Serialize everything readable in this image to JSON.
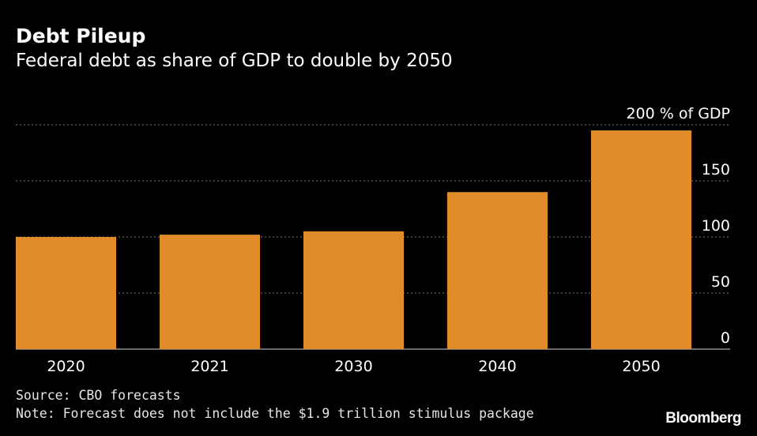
{
  "header": {
    "title": "Debt Pileup",
    "subtitle": "Federal debt as share of GDP to double by 2050"
  },
  "footer": {
    "source": "Source: CBO forecasts",
    "note": "Note: Forecast does not include the $1.9 trillion stimulus package",
    "brand": "Bloomberg"
  },
  "colors": {
    "background": "#000000",
    "bar": "#E08C2B",
    "gridline": "#7a7a7a",
    "axis": "#aaaaaa",
    "text": "#ffffff"
  },
  "chart_data": {
    "type": "bar",
    "title": "Debt Pileup",
    "subtitle": "Federal debt as share of GDP to double by 2050",
    "categories": [
      "2020",
      "2021",
      "2030",
      "2040",
      "2050"
    ],
    "values": [
      100,
      102,
      105,
      140,
      195
    ],
    "ylim": [
      0,
      200
    ],
    "yticks": [
      0,
      50,
      100,
      150,
      200
    ],
    "ytick_labels": [
      "0",
      "50",
      "100",
      "150",
      "200 % of GDP"
    ],
    "y_axis_position": "right",
    "grid": true
  }
}
